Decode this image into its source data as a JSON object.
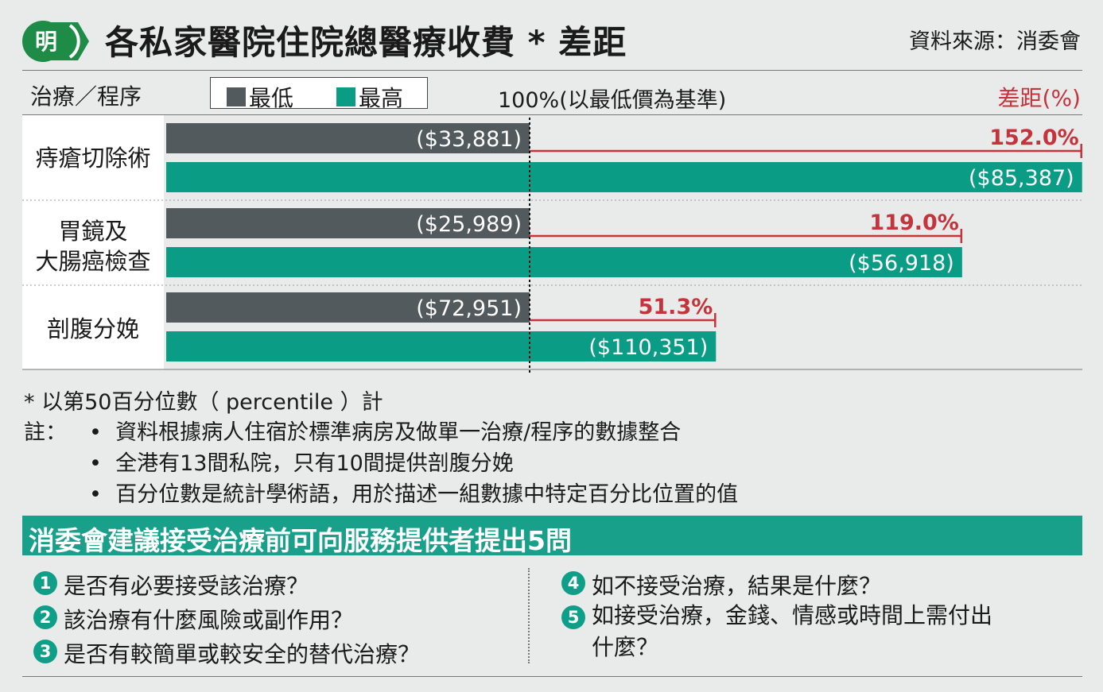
{
  "header": {
    "logo_text": "明",
    "title": "各私家醫院住院總醫療收費 * 差距",
    "source": "資料來源：消委會"
  },
  "chart_header": {
    "treatment_label": "治療／程序",
    "baseline_label": "100%(以最低價為基準)",
    "diff_label": "差距(%)"
  },
  "colors": {
    "min_bar": "#535a5d",
    "max_bar": "#0a9c84",
    "diff_text": "#c3343c",
    "banner": "#18a08a"
  },
  "chart_data": {
    "type": "bar",
    "orientation": "horizontal",
    "categories": [
      "痔瘡切除術",
      "胃鏡及\n大腸癌檢查",
      "剖腹分娩"
    ],
    "series": [
      {
        "name": "最低",
        "values": [
          33881,
          25989,
          72951
        ],
        "labels": [
          "($33,881)",
          "($25,989)",
          "($72,951)"
        ]
      },
      {
        "name": "最高",
        "values": [
          85387,
          56918,
          110351
        ],
        "labels": [
          "($85,387)",
          "($56,918)",
          "($110,351)"
        ]
      }
    ],
    "diff_percent": [
      152.0,
      119.0,
      51.3
    ],
    "diff_labels": [
      "152.0%",
      "119.0%",
      "51.3%"
    ],
    "baseline_percent": 100,
    "scale_max_percent": 252
  },
  "notes": {
    "footnote": "* 以第50百分位數（ percentile ）計",
    "note_prefix": "註：",
    "items": [
      "資料根據病人住宿於標準病房及做單一治療/程序的數據整合",
      "全港有13間私院，只有10間提供剖腹分娩",
      "百分位數是統計學術語，用於描述一組數據中特定百分比位置的值"
    ]
  },
  "banner": {
    "text": "消委會建議接受治療前可向服務提供者提出5問"
  },
  "questions": [
    {
      "num": "1",
      "text": "是否有必要接受該治療？"
    },
    {
      "num": "2",
      "text": "該治療有什麼風險或副作用？"
    },
    {
      "num": "3",
      "text": "是否有較簡單或較安全的替代治療？"
    },
    {
      "num": "4",
      "text": "如不接受治療，結果是什麼？"
    },
    {
      "num": "5",
      "text": "如接受治療，金錢、情感或時間上需付出\n什麼？"
    }
  ]
}
